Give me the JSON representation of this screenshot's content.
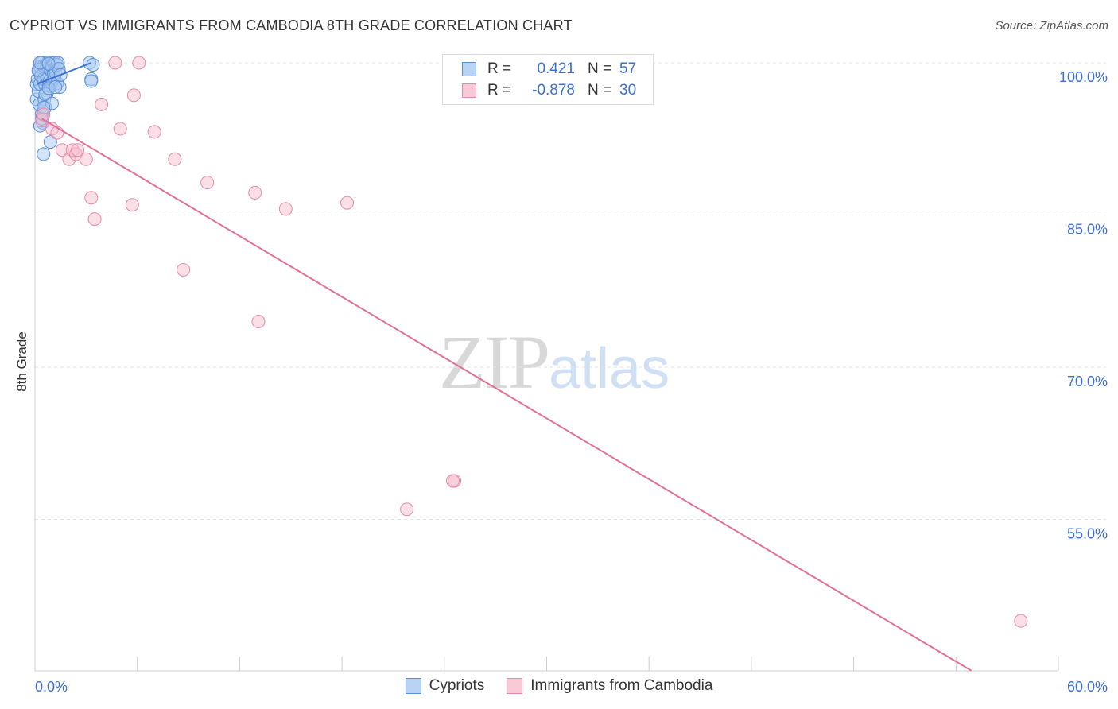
{
  "header": {
    "title": "CYPRIOT VS IMMIGRANTS FROM CAMBODIA 8TH GRADE CORRELATION CHART",
    "source": "Source: ZipAtlas.com"
  },
  "watermark": {
    "zip": "ZIP",
    "atlas": "atlas"
  },
  "legend": {
    "rows": [
      {
        "r_label": "R =",
        "r_value": "0.421",
        "n_label": "N =",
        "n_value": "57"
      },
      {
        "r_label": "R =",
        "r_value": "-0.878",
        "n_label": "N =",
        "n_value": "30"
      }
    ],
    "bottom": [
      "Cypriots",
      "Immigrants from Cambodia"
    ]
  },
  "colors": {
    "blue_fill": "#a9c9f2",
    "blue_stroke": "#5a8fd8",
    "blue_line": "#3b6fd4",
    "pink_fill": "#f7bfd0",
    "pink_stroke": "#e58aa8",
    "pink_line": "#e07099",
    "tick_label": "#3b6fd4",
    "grid": "#e3e3e3"
  },
  "chart_data": {
    "type": "scatter",
    "title": "CYPRIOT VS IMMIGRANTS FROM CAMBODIA 8TH GRADE CORRELATION CHART",
    "xlabel": "",
    "ylabel": "8th Grade",
    "xlim": [
      0,
      60
    ],
    "ylim": [
      41,
      100
    ],
    "x_tick_labels": [
      "0.0%",
      "60.0%"
    ],
    "y_ticks": [
      100,
      85,
      70,
      55
    ],
    "y_tick_labels": [
      "100.0%",
      "85.0%",
      "70.0%",
      "55.0%"
    ],
    "grid": true,
    "legend": "top-center",
    "series": [
      {
        "name": "Cypriots",
        "x": [
          0.1,
          0.1,
          0.15,
          0.2,
          0.2,
          0.25,
          0.3,
          0.3,
          0.35,
          0.4,
          0.4,
          0.45,
          0.5,
          0.5,
          0.55,
          0.6,
          0.6,
          0.65,
          0.7,
          0.7,
          0.75,
          0.8,
          0.8,
          0.85,
          0.9,
          0.9,
          0.95,
          1.0,
          1.0,
          1.05,
          1.1,
          1.1,
          1.15,
          1.2,
          1.2,
          1.3,
          1.3,
          1.35,
          1.4,
          1.45,
          1.5,
          0.3,
          0.4,
          0.5,
          0.6,
          0.8,
          0.9,
          1.0,
          0.2,
          0.3,
          0.5,
          0.8,
          1.2,
          3.2,
          3.3,
          3.3,
          3.4
        ],
        "y": [
          97.9,
          96.4,
          98.4,
          99.2,
          97.2,
          95.9,
          99.6,
          97.9,
          98.7,
          100.0,
          95.0,
          94.1,
          99.7,
          98.4,
          96.4,
          97.8,
          95.6,
          99.8,
          98.6,
          97.0,
          100.0,
          99.5,
          97.8,
          98.2,
          99.5,
          97.7,
          99.2,
          99.6,
          98.0,
          98.2,
          100.0,
          98.9,
          98.5,
          99.0,
          100.0,
          98.0,
          99.8,
          100.0,
          99.4,
          97.6,
          98.8,
          93.8,
          94.5,
          91.0,
          96.9,
          97.5,
          92.2,
          96.0,
          99.3,
          100.0,
          95.6,
          99.9,
          97.6,
          100.0,
          98.4,
          98.2,
          99.8
        ],
        "trend": {
          "x": [
            0.1,
            3.3
          ],
          "y": [
            97.9,
            100.0
          ]
        }
      },
      {
        "name": "Immigrants from Cambodia",
        "x": [
          0.4,
          0.5,
          1.0,
          1.3,
          1.6,
          2.0,
          2.2,
          2.4,
          2.5,
          3.0,
          3.3,
          3.5,
          3.9,
          4.7,
          5.0,
          5.7,
          5.8,
          6.1,
          7.0,
          8.2,
          8.7,
          10.1,
          12.9,
          13.1,
          14.7,
          18.3,
          21.8,
          24.6,
          24.5,
          57.8
        ],
        "y": [
          94.3,
          94.9,
          93.5,
          93.1,
          91.4,
          90.5,
          91.4,
          91.0,
          91.4,
          90.5,
          86.7,
          84.6,
          95.9,
          100.0,
          93.5,
          86.0,
          96.8,
          100.0,
          93.2,
          90.5,
          79.6,
          88.2,
          87.2,
          74.5,
          85.6,
          86.2,
          56.0,
          58.8,
          58.8,
          45.0
        ],
        "trend": {
          "x": [
            0.4,
            54.9
          ],
          "y": [
            94.5,
            40.1
          ]
        }
      }
    ]
  }
}
